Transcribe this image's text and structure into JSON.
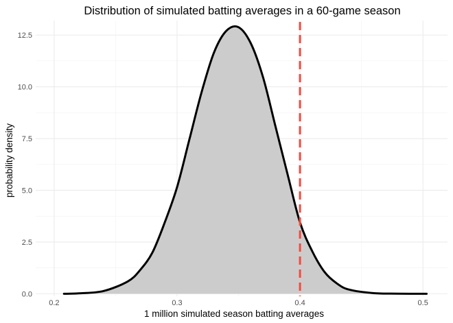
{
  "chart_data": {
    "type": "area",
    "title": "Distribution of simulated batting averages in a 60-game season",
    "xlabel": "1 million simulated season batting averages",
    "ylabel": "probability density",
    "xlim": [
      0.185,
      0.52
    ],
    "ylim": [
      -0.12,
      13.2
    ],
    "x_ticks": [
      0.2,
      0.3,
      0.4,
      0.5
    ],
    "x_tick_labels": [
      "0.2",
      "0.3",
      "0.4",
      "0.5"
    ],
    "y_ticks": [
      0.0,
      2.5,
      5.0,
      7.5,
      10.0,
      12.5
    ],
    "y_tick_labels": [
      "0.0",
      "2.5",
      "5.0",
      "7.5",
      "10.0",
      "12.5"
    ],
    "grid": true,
    "legend": "none",
    "series": [
      {
        "x": [
          0.208,
          0.22,
          0.24,
          0.26,
          0.27,
          0.28,
          0.29,
          0.3,
          0.31,
          0.32,
          0.33,
          0.34,
          0.35,
          0.36,
          0.37,
          0.38,
          0.39,
          0.4,
          0.41,
          0.42,
          0.43,
          0.44,
          0.46,
          0.48,
          0.503
        ],
        "y": [
          0.0,
          0.02,
          0.13,
          0.6,
          1.15,
          2.0,
          3.45,
          5.15,
          7.45,
          9.75,
          11.65,
          12.7,
          12.88,
          12.1,
          10.45,
          8.1,
          5.75,
          3.45,
          2.05,
          1.05,
          0.5,
          0.2,
          0.03,
          0.005,
          0.0
        ],
        "line_color": "#000000",
        "fill_color": "#cccccc"
      }
    ],
    "annotations": [
      {
        "type": "vline",
        "x": 0.4,
        "style": "dashed",
        "color": "#f8483c"
      }
    ]
  }
}
